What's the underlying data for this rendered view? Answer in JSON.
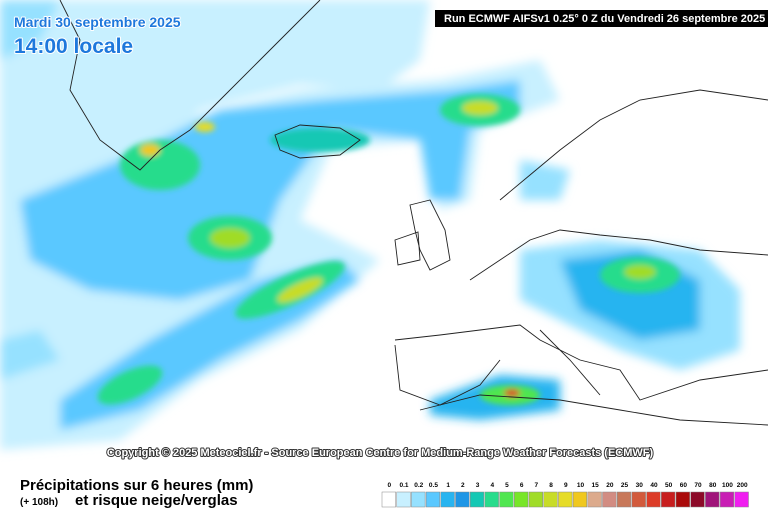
{
  "header": {
    "date": "Mardi 30 septembre 2025",
    "time": "14:00 locale",
    "run": "Run ECMWF AIFSv1 0.25° 0 Z du Vendredi 26 septembre 2025"
  },
  "copyright": "Copyright © 2025 Meteociel.fr - Source European Centre for Medium-Range Weather Forecasts (ECMWF)",
  "footer": {
    "title": "Précipitations sur 6 heures (mm)",
    "lead": "(+ 108h)",
    "subtitle": "et risque neige/verglas"
  },
  "legend": {
    "labels": [
      "0",
      "0.1",
      "0.2",
      "0.5",
      "1",
      "2",
      "3",
      "4",
      "5",
      "6",
      "7",
      "8",
      "9",
      "10",
      "15",
      "20",
      "25",
      "30",
      "40",
      "50",
      "60",
      "70",
      "80",
      "100",
      "200"
    ],
    "colors": [
      "#ffffff",
      "#c8f0ff",
      "#96e1ff",
      "#5ac8ff",
      "#28b4f0",
      "#1e96e6",
      "#14c8b4",
      "#28dc8c",
      "#50e650",
      "#78e628",
      "#a0dc28",
      "#c8dc28",
      "#e6dc28",
      "#f0c81e",
      "#dcaa8c",
      "#d28c82",
      "#c8785a",
      "#d25a3c",
      "#dc3c28",
      "#c81e1e",
      "#aa0a0a",
      "#8c0a28",
      "#a0147a",
      "#c81eb4",
      "#f01ef0"
    ]
  }
}
